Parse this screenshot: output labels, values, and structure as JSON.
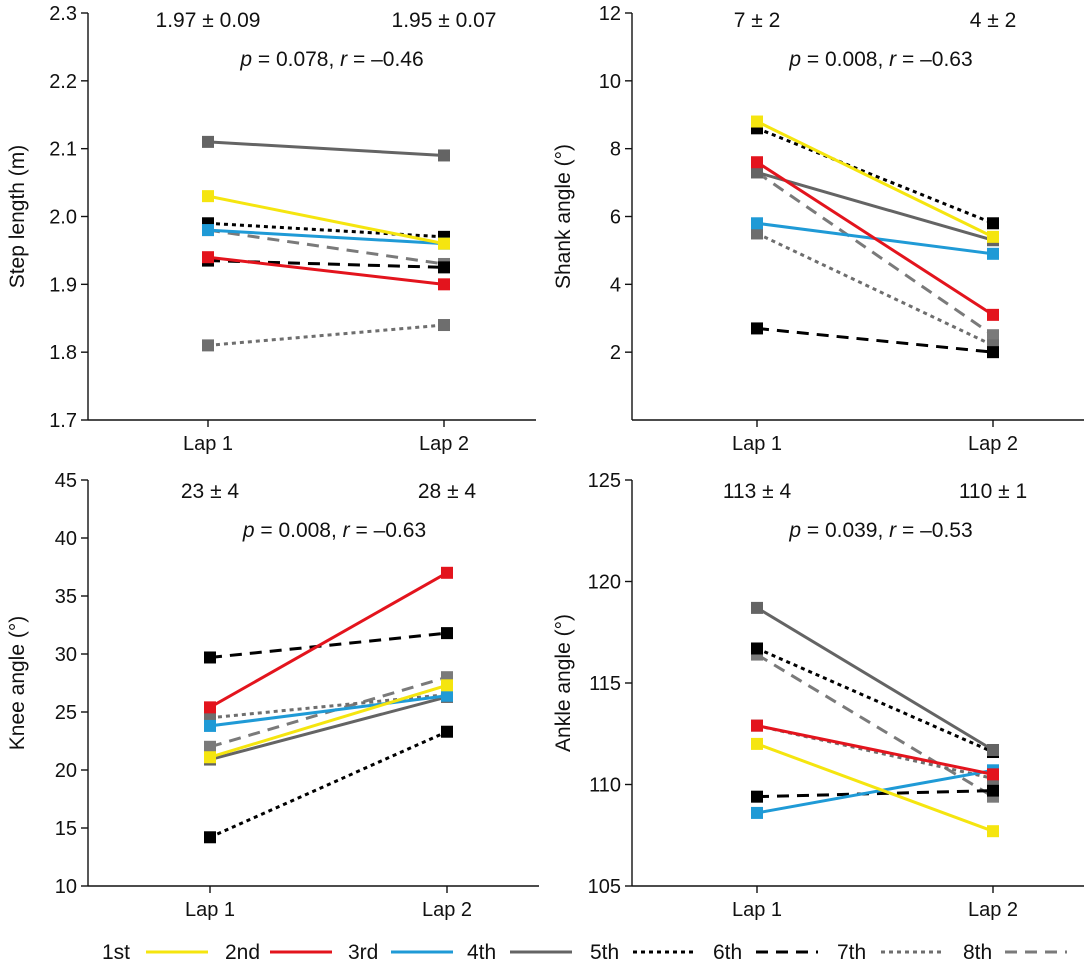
{
  "figure": {
    "legend": [
      {
        "label": "1st",
        "color": "#f5e50f",
        "dash": "solid"
      },
      {
        "label": "2nd",
        "color": "#e3141d",
        "dash": "solid"
      },
      {
        "label": "3rd",
        "color": "#1f9ad6",
        "dash": "solid"
      },
      {
        "label": "4th",
        "color": "#646464",
        "dash": "solid"
      },
      {
        "label": "5th",
        "color": "#000000",
        "dash": "dotted"
      },
      {
        "label": "6th",
        "color": "#000000",
        "dash": "dashed"
      },
      {
        "label": "7th",
        "color": "#6e6e6e",
        "dash": "dotted"
      },
      {
        "label": "8th",
        "color": "#7a7a7a",
        "dash": "dashed"
      }
    ]
  },
  "chart_data": [
    {
      "type": "line",
      "panel": "top-left",
      "categories": [
        "Lap 1",
        "Lap 2"
      ],
      "ylabel": "Step length (m)",
      "ylim": [
        1.7,
        2.3
      ],
      "yticks": [
        1.7,
        1.8,
        1.9,
        2.0,
        2.1,
        2.2,
        2.3
      ],
      "ytick_labels": [
        "1.7",
        "1.8",
        "1.9",
        "2.0",
        "2.1",
        "2.2",
        "2.3"
      ],
      "stats": {
        "lap1": "1.97 ± 0.09",
        "lap2": "1.95 ± 0.07",
        "p_value": "0.078",
        "r_value": "–0.46"
      },
      "series": [
        {
          "name": "1st",
          "values": [
            2.03,
            1.96
          ]
        },
        {
          "name": "2nd",
          "values": [
            1.94,
            1.9
          ]
        },
        {
          "name": "3rd",
          "values": [
            1.98,
            1.96
          ]
        },
        {
          "name": "4th",
          "values": [
            2.11,
            2.09
          ]
        },
        {
          "name": "5th",
          "values": [
            1.99,
            1.97
          ]
        },
        {
          "name": "6th",
          "values": [
            1.935,
            1.925
          ]
        },
        {
          "name": "7th",
          "values": [
            1.81,
            1.84
          ]
        },
        {
          "name": "8th",
          "values": [
            1.98,
            1.93
          ]
        }
      ]
    },
    {
      "type": "line",
      "panel": "top-right",
      "categories": [
        "Lap 1",
        "Lap 2"
      ],
      "ylabel": "Shank angle (°)",
      "ylim": [
        0,
        12
      ],
      "yticks": [
        2,
        4,
        6,
        8,
        10,
        12
      ],
      "ytick_labels": [
        "2",
        "4",
        "6",
        "8",
        "10",
        "12"
      ],
      "stats": {
        "lap1": "7 ± 2",
        "lap2": "4 ± 2",
        "p_value": "0.008",
        "r_value": "–0.63"
      },
      "series": [
        {
          "name": "1st",
          "values": [
            8.8,
            5.4
          ]
        },
        {
          "name": "2nd",
          "values": [
            7.6,
            3.1
          ]
        },
        {
          "name": "3rd",
          "values": [
            5.8,
            4.9
          ]
        },
        {
          "name": "4th",
          "values": [
            7.3,
            5.3
          ]
        },
        {
          "name": "5th",
          "values": [
            8.6,
            5.8
          ]
        },
        {
          "name": "6th",
          "values": [
            2.7,
            2.0
          ]
        },
        {
          "name": "7th",
          "values": [
            5.5,
            2.2
          ]
        },
        {
          "name": "8th",
          "values": [
            7.3,
            2.5
          ]
        }
      ]
    },
    {
      "type": "line",
      "panel": "bottom-left",
      "categories": [
        "Lap 1",
        "Lap 2"
      ],
      "ylabel": "Knee angle (°)",
      "ylim": [
        10,
        45
      ],
      "yticks": [
        10,
        15,
        20,
        25,
        30,
        35,
        40,
        45
      ],
      "ytick_labels": [
        "10",
        "15",
        "20",
        "25",
        "30",
        "35",
        "40",
        "45"
      ],
      "stats": {
        "lap1": "23 ± 4",
        "lap2": "28 ± 4",
        "p_value": "0.008",
        "r_value": "–0.63"
      },
      "series": [
        {
          "name": "1st",
          "values": [
            21.1,
            27.3
          ]
        },
        {
          "name": "2nd",
          "values": [
            25.4,
            37.0
          ]
        },
        {
          "name": "3rd",
          "values": [
            23.8,
            26.4
          ]
        },
        {
          "name": "4th",
          "values": [
            20.9,
            26.3
          ]
        },
        {
          "name": "5th",
          "values": [
            14.2,
            23.3
          ]
        },
        {
          "name": "6th",
          "values": [
            29.7,
            31.8
          ]
        },
        {
          "name": "7th",
          "values": [
            24.5,
            26.5
          ]
        },
        {
          "name": "8th",
          "values": [
            22.0,
            28.0
          ]
        }
      ]
    },
    {
      "type": "line",
      "panel": "bottom-right",
      "categories": [
        "Lap 1",
        "Lap 2"
      ],
      "ylabel": "Ankle angle (°)",
      "ylim": [
        105,
        125
      ],
      "yticks": [
        105,
        110,
        115,
        120,
        125
      ],
      "ytick_labels": [
        "105",
        "110",
        "115",
        "120",
        "125"
      ],
      "stats": {
        "lap1": "113 ± 4",
        "lap2": "110 ± 1",
        "p_value": "0.039",
        "r_value": "–0.53"
      },
      "series": [
        {
          "name": "1st",
          "values": [
            112.0,
            107.7
          ]
        },
        {
          "name": "2nd",
          "values": [
            112.9,
            110.5
          ]
        },
        {
          "name": "3rd",
          "values": [
            108.6,
            110.7
          ]
        },
        {
          "name": "4th",
          "values": [
            118.7,
            111.7
          ]
        },
        {
          "name": "5th",
          "values": [
            116.7,
            111.6
          ]
        },
        {
          "name": "6th",
          "values": [
            109.4,
            109.7
          ]
        },
        {
          "name": "7th",
          "values": [
            112.9,
            110.3
          ]
        },
        {
          "name": "8th",
          "values": [
            116.4,
            109.4
          ]
        }
      ]
    }
  ]
}
